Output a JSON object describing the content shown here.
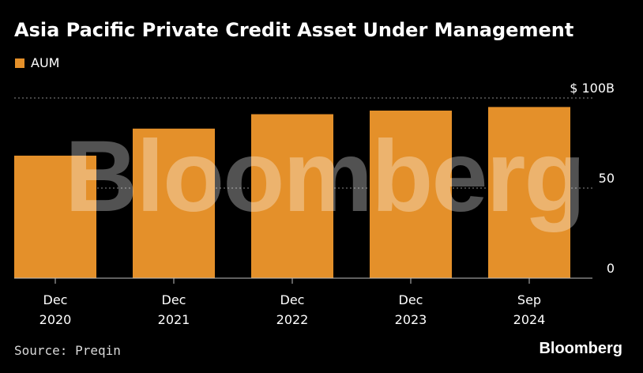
{
  "title": "Asia Pacific Private Credit Asset Under Management",
  "source": "Source: Preqin",
  "brand": "Bloomberg",
  "watermark": "Bloomberg",
  "colors": {
    "bar": "#E4902A",
    "background": "#000000",
    "grid": "#8a8a8a"
  },
  "chart_data": {
    "type": "bar",
    "title": "Asia Pacific Private Credit Asset Under Management",
    "categories": [
      [
        "Dec",
        "2020"
      ],
      [
        "Dec",
        "2021"
      ],
      [
        "Dec",
        "2022"
      ],
      [
        "Dec",
        "2023"
      ],
      [
        "Sep",
        "2024"
      ]
    ],
    "series": [
      {
        "name": "AUM",
        "values": [
          68,
          83,
          91,
          93,
          95
        ]
      }
    ],
    "ylim": [
      0,
      100
    ],
    "yticks": [
      {
        "value": 0,
        "label": "0"
      },
      {
        "value": 50,
        "label": "50"
      },
      {
        "value": 100,
        "label": "$ 100B"
      }
    ],
    "grid": true,
    "legend": "top-left"
  }
}
